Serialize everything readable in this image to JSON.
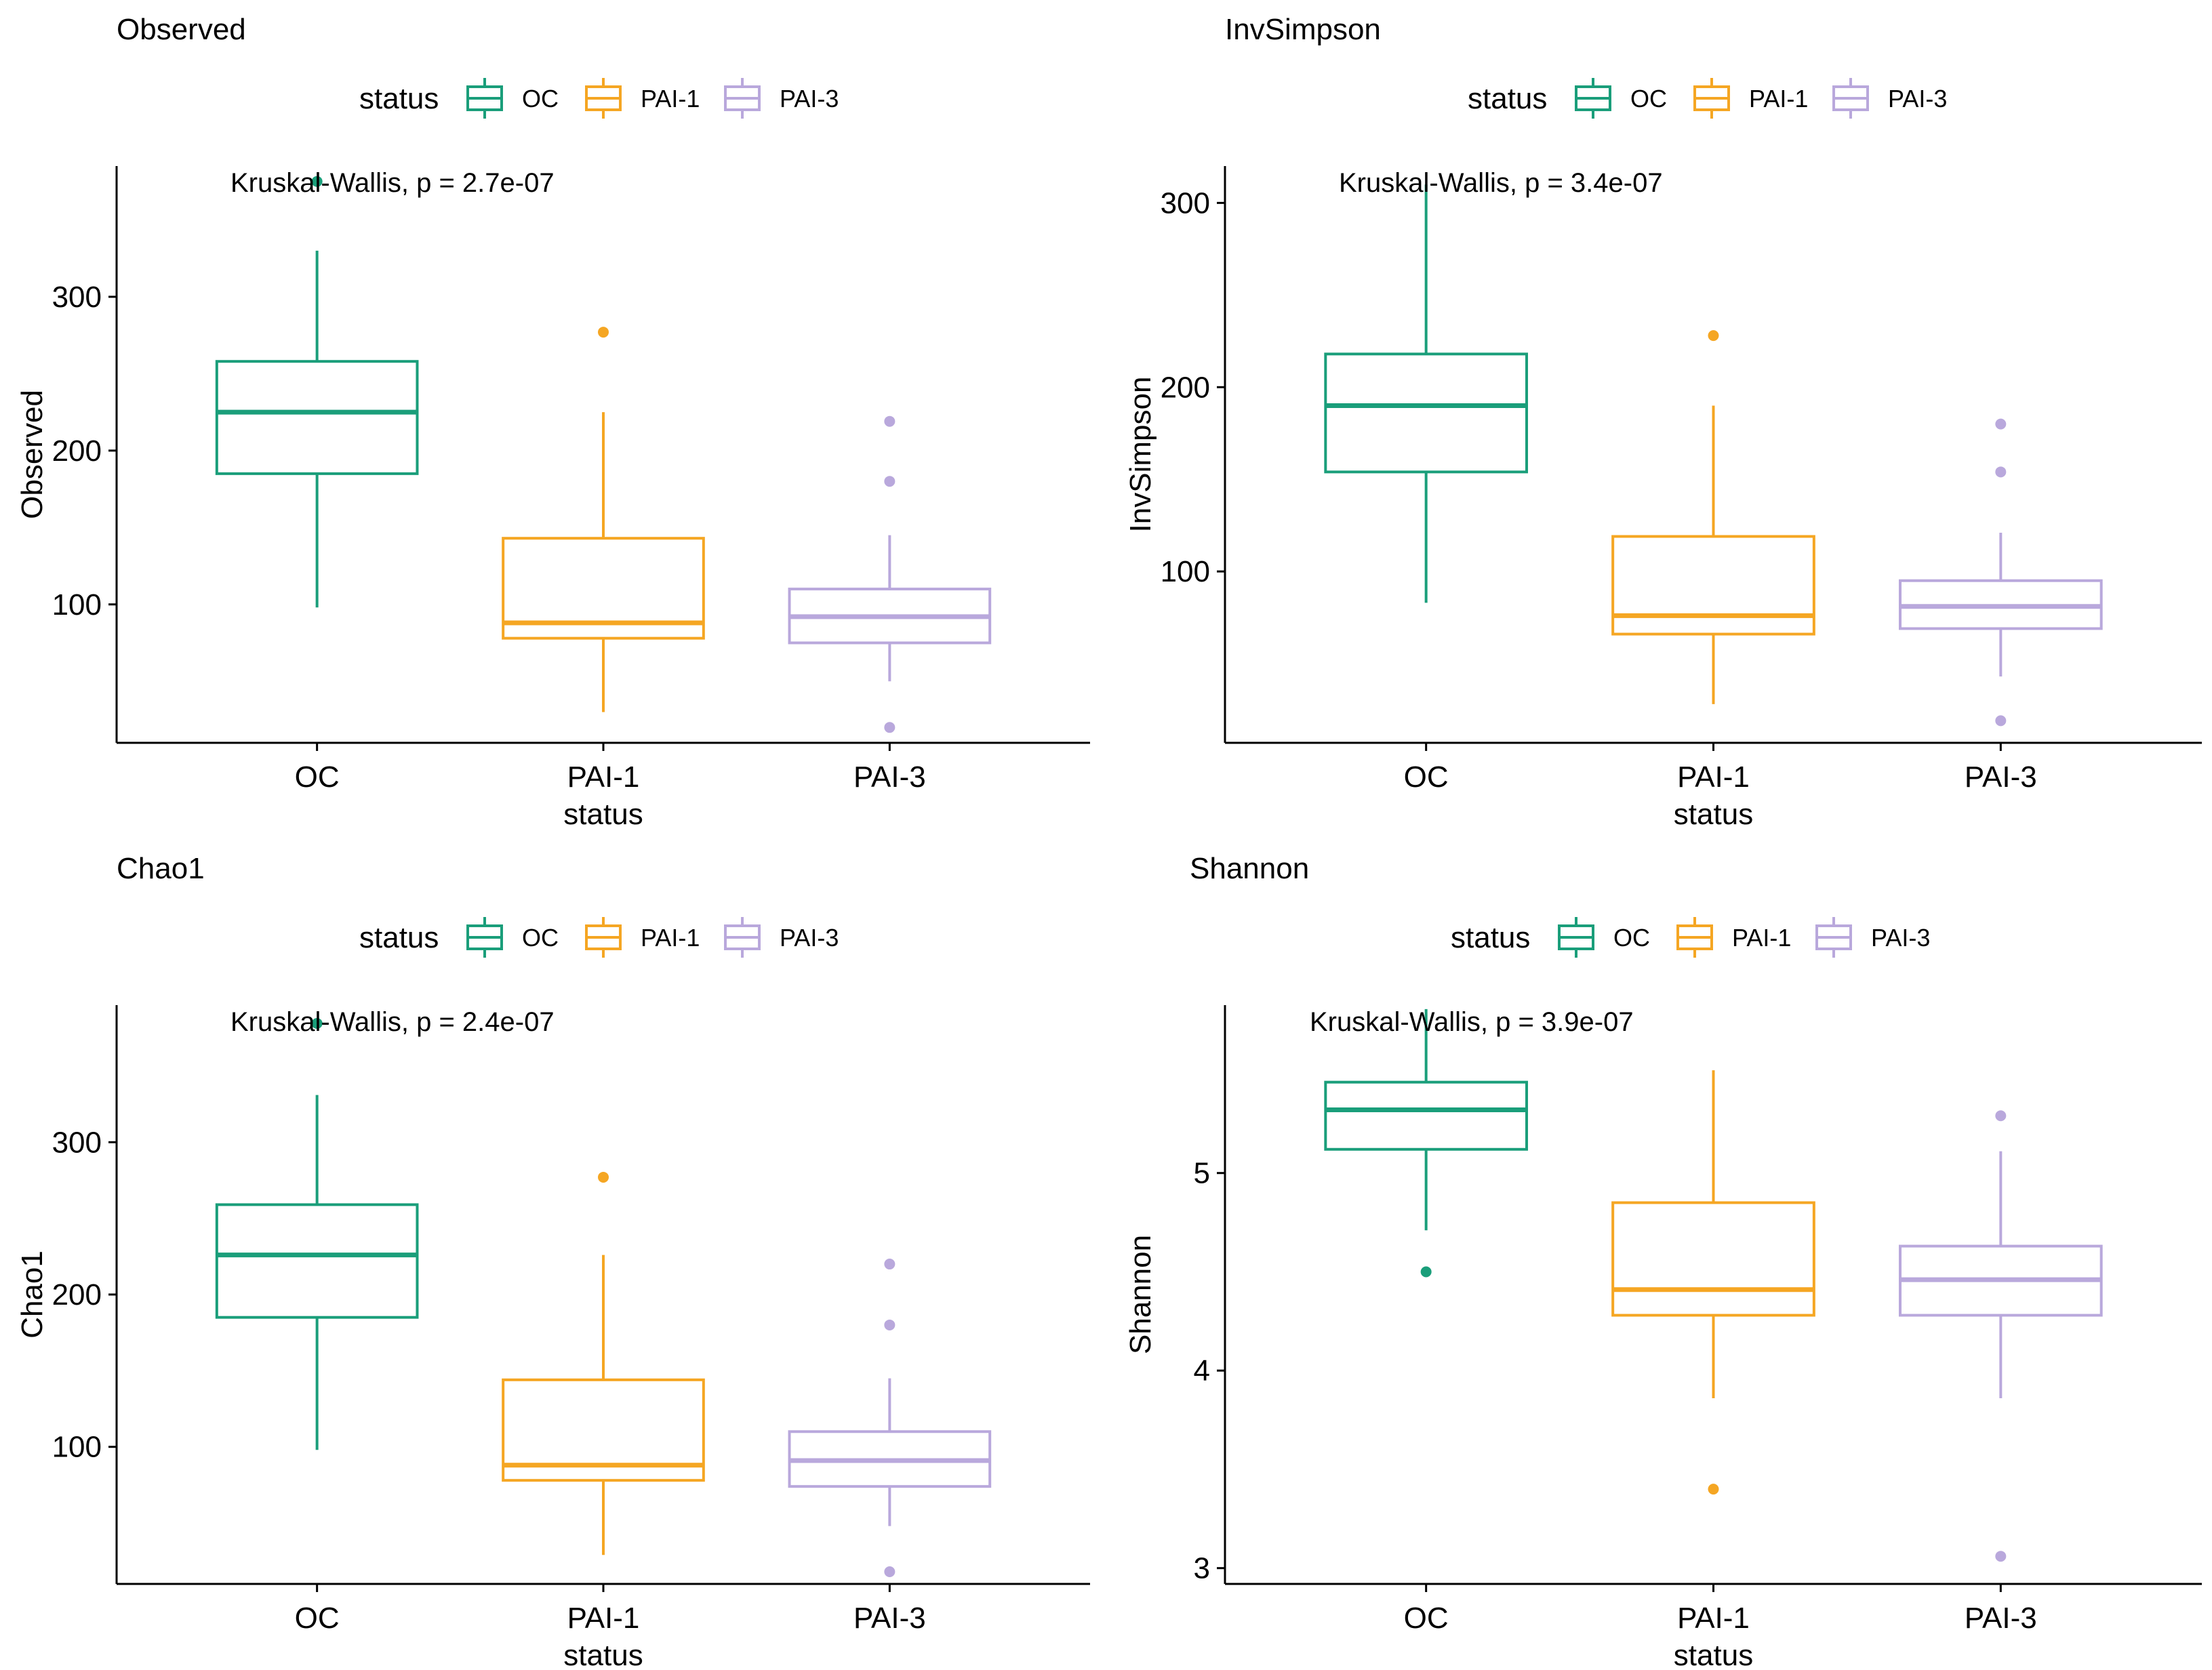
{
  "colors": {
    "OC": "#1a9e7a",
    "PAI-1": "#f5a623",
    "PAI-3": "#b9a8dc",
    "axis": "#000000"
  },
  "legend": {
    "title": "status",
    "entries": [
      "OC",
      "PAI-1",
      "PAI-3"
    ]
  },
  "chart_data": [
    {
      "type": "box",
      "title": "Observed",
      "xlabel": "status",
      "ylabel": "Observed",
      "ylim": [
        10,
        385
      ],
      "yticks": [
        100,
        200,
        300
      ],
      "categories": [
        "OC",
        "PAI-1",
        "PAI-3"
      ],
      "annotation": "Kruskal-Wallis, p = 2.7e-07",
      "boxes": [
        {
          "name": "OC",
          "whisker_low": 98,
          "q1": 185,
          "median": 225,
          "q3": 258,
          "whisker_high": 330,
          "outliers": [
            375
          ]
        },
        {
          "name": "PAI-1",
          "whisker_low": 30,
          "q1": 78,
          "median": 88,
          "q3": 143,
          "whisker_high": 225,
          "outliers": [
            277
          ]
        },
        {
          "name": "PAI-3",
          "whisker_low": 50,
          "q1": 75,
          "median": 92,
          "q3": 110,
          "whisker_high": 145,
          "outliers": [
            219,
            180,
            20
          ]
        }
      ]
    },
    {
      "type": "box",
      "title": "InvSimpson",
      "xlabel": "status",
      "ylabel": "InvSimpson",
      "ylim": [
        7,
        320
      ],
      "yticks": [
        100,
        200,
        300
      ],
      "categories": [
        "OC",
        "PAI-1",
        "PAI-3"
      ],
      "annotation": "Kruskal-Wallis, p = 3.4e-07",
      "boxes": [
        {
          "name": "OC",
          "whisker_low": 83,
          "q1": 154,
          "median": 190,
          "q3": 218,
          "whisker_high": 310,
          "outliers": []
        },
        {
          "name": "PAI-1",
          "whisker_low": 28,
          "q1": 66,
          "median": 76,
          "q3": 119,
          "whisker_high": 190,
          "outliers": [
            228
          ]
        },
        {
          "name": "PAI-3",
          "whisker_low": 43,
          "q1": 69,
          "median": 81,
          "q3": 95,
          "whisker_high": 121,
          "outliers": [
            180,
            154,
            19
          ]
        }
      ]
    },
    {
      "type": "box",
      "title": "Chao1",
      "xlabel": "status",
      "ylabel": "Chao1",
      "ylim": [
        10,
        390
      ],
      "yticks": [
        100,
        200,
        300
      ],
      "categories": [
        "OC",
        "PAI-1",
        "PAI-3"
      ],
      "annotation": "Kruskal-Wallis, p = 2.4e-07",
      "boxes": [
        {
          "name": "OC",
          "whisker_low": 98,
          "q1": 185,
          "median": 226,
          "q3": 259,
          "whisker_high": 331,
          "outliers": [
            378
          ]
        },
        {
          "name": "PAI-1",
          "whisker_low": 29,
          "q1": 78,
          "median": 88,
          "q3": 144,
          "whisker_high": 226,
          "outliers": [
            277
          ]
        },
        {
          "name": "PAI-3",
          "whisker_low": 48,
          "q1": 74,
          "median": 91,
          "q3": 110,
          "whisker_high": 145,
          "outliers": [
            220,
            180,
            18
          ]
        }
      ]
    },
    {
      "type": "box",
      "title": "Shannon",
      "xlabel": "status",
      "ylabel": "Shannon",
      "ylim": [
        2.92,
        5.85
      ],
      "yticks": [
        3,
        4,
        5
      ],
      "categories": [
        "OC",
        "PAI-1",
        "PAI-3"
      ],
      "annotation": "Kruskal-Wallis, p = 3.9e-07",
      "boxes": [
        {
          "name": "OC",
          "whisker_low": 4.71,
          "q1": 5.12,
          "median": 5.32,
          "q3": 5.46,
          "whisker_high": 5.83,
          "outliers": [
            4.5
          ]
        },
        {
          "name": "PAI-1",
          "whisker_low": 3.86,
          "q1": 4.28,
          "median": 4.41,
          "q3": 4.85,
          "whisker_high": 5.52,
          "outliers": [
            3.4
          ]
        },
        {
          "name": "PAI-3",
          "whisker_low": 3.86,
          "q1": 4.28,
          "median": 4.46,
          "q3": 4.63,
          "whisker_high": 5.11,
          "outliers": [
            5.29,
            3.06
          ]
        }
      ]
    }
  ]
}
